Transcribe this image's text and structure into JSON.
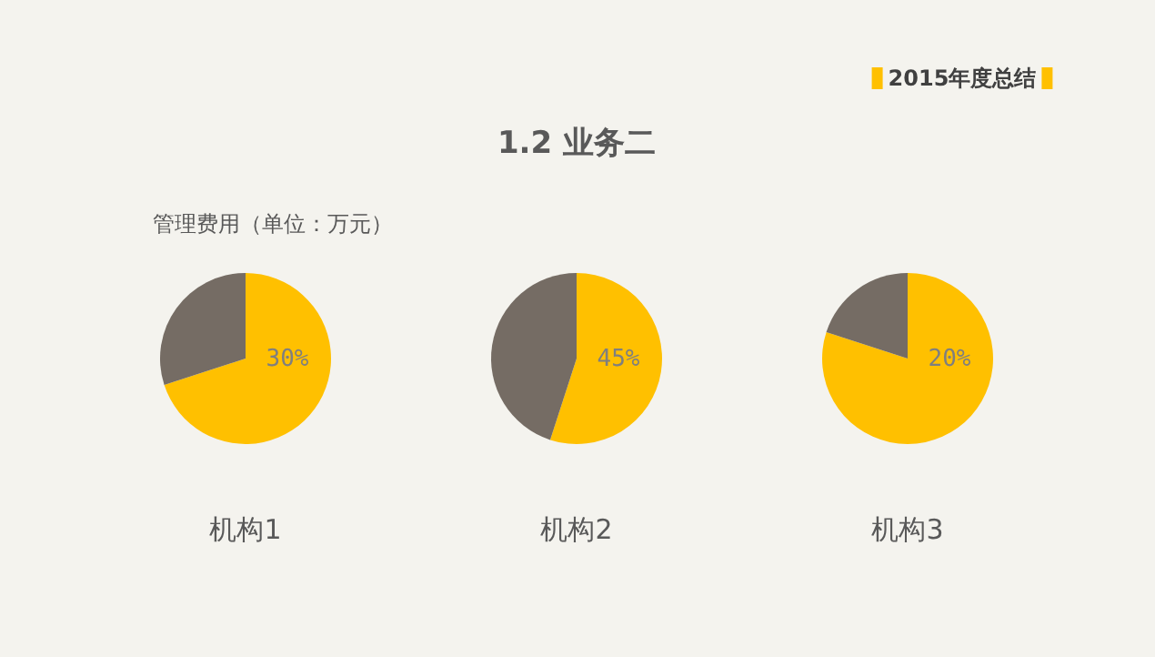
{
  "chart_data": [
    {
      "type": "pie",
      "subtitle": "管理费用（单位：万元）",
      "xlabel": "机构1",
      "categories": [
        null,
        null
      ],
      "values": [
        70,
        30
      ],
      "colors": [
        "#ffc000",
        "#756c64"
      ],
      "annotations": [
        "30%"
      ]
    },
    {
      "type": "pie",
      "title": "1.2 业务二",
      "xlabel": "机构2",
      "categories": [
        null,
        null
      ],
      "values": [
        55,
        45
      ],
      "colors": [
        "#ffc000",
        "#756c64"
      ],
      "annotations": [
        "45%"
      ]
    },
    {
      "type": "pie",
      "xlabel": "机构3",
      "categories": [
        null,
        null
      ],
      "values": [
        80,
        20
      ],
      "colors": [
        "#ffc000",
        "#756c64"
      ],
      "annotations": [
        "20%",
        "2015年度总结"
      ]
    }
  ]
}
